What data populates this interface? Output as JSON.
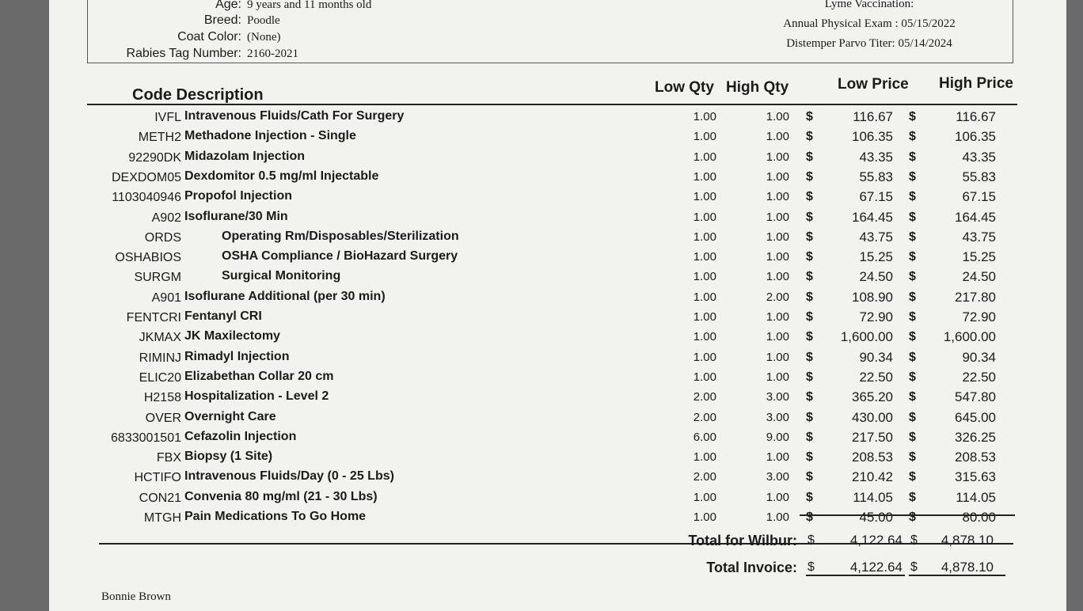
{
  "patient": {
    "fields": [
      {
        "label": "Age:",
        "value": "9 years and 11 months old"
      },
      {
        "label": "Breed:",
        "value": "Poodle"
      },
      {
        "label": "Coat Color:",
        "value": "(None)"
      },
      {
        "label": "Rabies Tag Number:",
        "value": "2160-2021"
      }
    ]
  },
  "vaccines": [
    "Lyme Vaccination:",
    "Annual Physical Exam : 05/15/2022",
    "Distemper Parvo Titer: 05/14/2024"
  ],
  "table": {
    "headers": {
      "code_description": "Code Description",
      "low_qty": "Low Qty",
      "high_qty": "High Qty",
      "low_price": "Low Price",
      "high_price": "High Price"
    },
    "currency": "$",
    "rows": [
      [
        "IVFL",
        "Intravenous Fluids/Cath For Surgery",
        "1.00",
        "1.00",
        "116.67",
        "116.67"
      ],
      [
        "METH2",
        "Methadone Injection - Single",
        "1.00",
        "1.00",
        "106.35",
        "106.35"
      ],
      [
        "92290DK",
        "Midazolam Injection",
        "1.00",
        "1.00",
        "43.35",
        "43.35"
      ],
      [
        "DEXDOM05",
        "Dexdomitor 0.5 mg/ml Injectable",
        "1.00",
        "1.00",
        "55.83",
        "55.83"
      ],
      [
        "1103040946",
        "Propofol Injection",
        "1.00",
        "1.00",
        "67.15",
        "67.15"
      ],
      [
        "A902",
        "Isoflurane/30 Min",
        "1.00",
        "1.00",
        "164.45",
        "164.45"
      ],
      [
        "ORDS",
        "Operating Rm/Disposables/Sterilization",
        "1.00",
        "1.00",
        "43.75",
        "43.75"
      ],
      [
        "OSHABIOS",
        "OSHA Compliance / BioHazard Surgery",
        "1.00",
        "1.00",
        "15.25",
        "15.25"
      ],
      [
        "SURGM",
        "Surgical Monitoring",
        "1.00",
        "1.00",
        "24.50",
        "24.50"
      ],
      [
        "A901",
        "Isoflurane Additional (per 30 min)",
        "1.00",
        "2.00",
        "108.90",
        "217.80"
      ],
      [
        "FENTCRI",
        "Fentanyl CRI",
        "1.00",
        "1.00",
        "72.90",
        "72.90"
      ],
      [
        "JKMAX",
        "JK Maxilectomy",
        "1.00",
        "1.00",
        "1,600.00",
        "1,600.00"
      ],
      [
        "RIMINJ",
        "Rimadyl Injection",
        "1.00",
        "1.00",
        "90.34",
        "90.34"
      ],
      [
        "ELIC20",
        "Elizabethan Collar 20 cm",
        "1.00",
        "1.00",
        "22.50",
        "22.50"
      ],
      [
        "H2158",
        "Hospitalization - Level 2",
        "2.00",
        "3.00",
        "365.20",
        "547.80"
      ],
      [
        "OVER",
        "Overnight Care",
        "2.00",
        "3.00",
        "430.00",
        "645.00"
      ],
      [
        "6833001501",
        "Cefazolin Injection",
        "6.00",
        "9.00",
        "217.50",
        "326.25"
      ],
      [
        "FBX",
        "Biopsy (1 Site)",
        "1.00",
        "1.00",
        "208.53",
        "208.53"
      ],
      [
        "HCTIFO",
        "Intravenous Fluids/Day (0 - 25 Lbs)",
        "2.00",
        "3.00",
        "210.42",
        "315.63"
      ],
      [
        "CON21",
        "Convenia 80 mg/ml (21 - 30 Lbs)",
        "1.00",
        "1.00",
        "114.05",
        "114.05"
      ],
      [
        "MTGH",
        "Pain Medications To Go Home",
        "1.00",
        "1.00",
        "45.00",
        "80.00"
      ]
    ]
  },
  "totals": [
    {
      "label": "Total for Wilbur:",
      "low": "4,122.64",
      "high": "4,878.10"
    },
    {
      "label": "Total Invoice:",
      "low": "4,122.64",
      "high": "4,878.10"
    }
  ],
  "footer": "Bonnie Brown"
}
